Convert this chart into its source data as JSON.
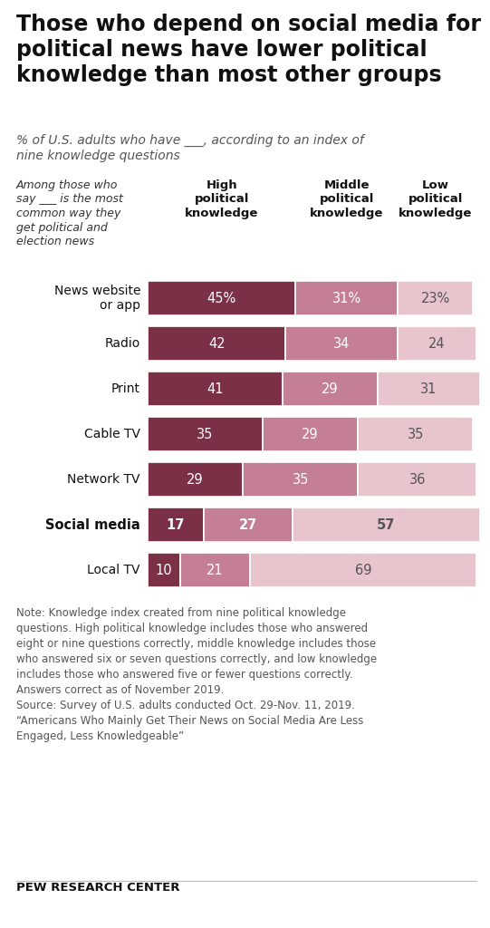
{
  "title": "Those who depend on social media for\npolitical news have lower political\nknowledge than most other groups",
  "subtitle_italic": "% of U.S. adults who have ___, according to an index of\nnine knowledge questions",
  "col_header_note": "Among those who\nsay ___ is the most\ncommon way they\nget political and\nelection news",
  "col_headers": [
    "High\npolitical\nknowledge",
    "Middle\npolitical\nknowledge",
    "Low\npolitical\nknowledge"
  ],
  "categories": [
    "News website\nor app",
    "Radio",
    "Print",
    "Cable TV",
    "Network TV",
    "Social media",
    "Local TV"
  ],
  "bold_row": 5,
  "high": [
    45,
    42,
    41,
    35,
    29,
    17,
    10
  ],
  "middle": [
    31,
    34,
    29,
    29,
    35,
    27,
    21
  ],
  "low": [
    23,
    24,
    31,
    35,
    36,
    57,
    69
  ],
  "labels_high": [
    "45%",
    "42",
    "41",
    "35",
    "29",
    "17",
    "10"
  ],
  "labels_middle": [
    "31%",
    "34",
    "29",
    "29",
    "35",
    "27",
    "21"
  ],
  "labels_low": [
    "23%",
    "24",
    "31",
    "35",
    "36",
    "57",
    "69"
  ],
  "color_high": "#7b3045",
  "color_middle": "#c47f96",
  "color_low": "#e8c4cc",
  "background_color": "#ffffff",
  "note": "Note: Knowledge index created from nine political knowledge\nquestions. High political knowledge includes those who answered\neight or nine questions correctly, middle knowledge includes those\nwho answered six or seven questions correctly, and low knowledge\nincludes those who answered five or fewer questions correctly.\nAnswers correct as of November 2019.\nSource: Survey of U.S. adults conducted Oct. 29-Nov. 11, 2019.\n“Americans Who Mainly Get Their News on Social Media Are Less\nEngaged, Less Knowledgeable”",
  "source_label": "PEW RESEARCH CENTER",
  "fig_width": 5.41,
  "fig_height": 10.24,
  "dpi": 100
}
